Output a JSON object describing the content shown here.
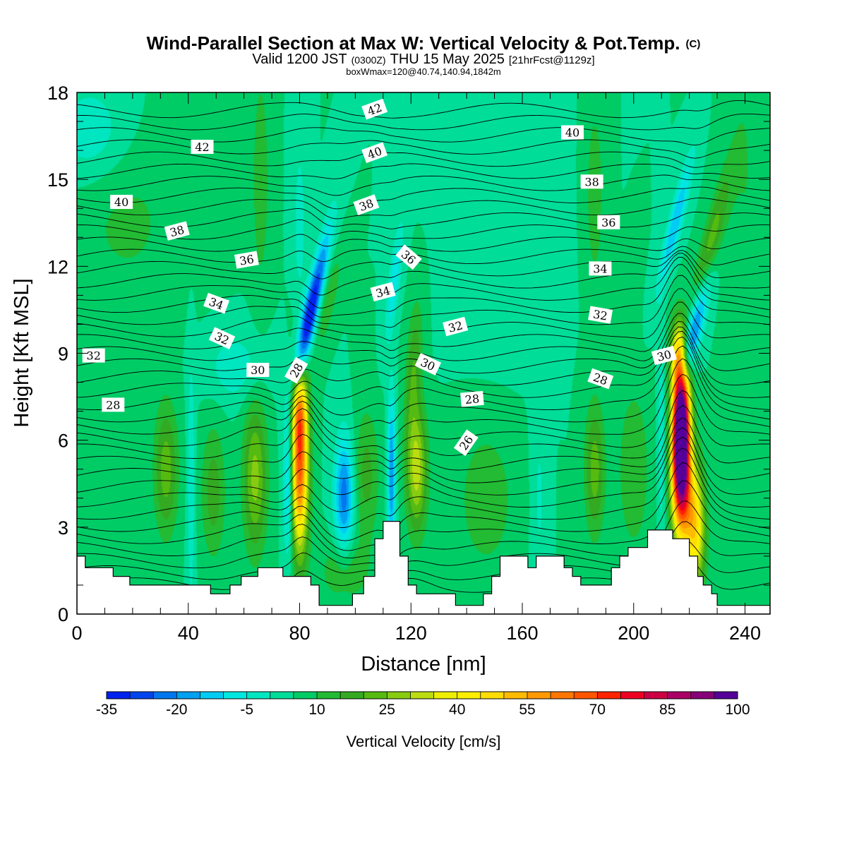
{
  "header": {
    "title_main": "Wind-Parallel Section at Max W: Vertical Velocity & Pot.Temp.",
    "title_mark": "(C)",
    "valid_prefix": "Valid 1200 JST",
    "valid_utc": "(0300Z)",
    "valid_date": "THU 15 May 2025",
    "forecast_info": "[21hrFcst@1129z]",
    "box_info": "boxWmax=120@40.74,140.94,1842m"
  },
  "chart_data": {
    "type": "heatmap",
    "xlabel": "Distance [nm]",
    "ylabel": "Height [Kft MSL]",
    "xlim": [
      0,
      249
    ],
    "ylim": [
      0,
      18
    ],
    "xticks": [
      0,
      40,
      80,
      120,
      160,
      200,
      240
    ],
    "yticks": [
      0,
      3,
      6,
      9,
      12,
      15,
      18
    ],
    "colorbar": {
      "title": "Vertical Velocity [cm/s]",
      "min": -35,
      "max": 100,
      "step": 5,
      "labels": [
        "-35",
        "-20",
        "-5",
        "10",
        "25",
        "40",
        "55",
        "70",
        "85",
        "100"
      ],
      "colors": [
        "#0022ee",
        "#0044ee",
        "#0077ee",
        "#00a0f0",
        "#00ccf4",
        "#00e6e0",
        "#00e6c0",
        "#00dd99",
        "#00cc66",
        "#22bb33",
        "#33aa22",
        "#55bb11",
        "#88cc11",
        "#bbdd11",
        "#eeee00",
        "#ffee00",
        "#ffdd00",
        "#ffbb00",
        "#ff9900",
        "#ff7700",
        "#ff5500",
        "#ff2200",
        "#ee0022",
        "#cc0044",
        "#aa0066",
        "#880077",
        "#550099"
      ]
    },
    "terrain": [
      [
        0,
        2.0
      ],
      [
        3,
        2.0
      ],
      [
        3,
        1.6
      ],
      [
        13,
        1.6
      ],
      [
        13,
        1.3
      ],
      [
        19,
        1.3
      ],
      [
        19,
        1.0
      ],
      [
        48,
        1.0
      ],
      [
        48,
        0.7
      ],
      [
        55,
        0.7
      ],
      [
        55,
        1.0
      ],
      [
        59,
        1.0
      ],
      [
        59,
        1.3
      ],
      [
        65,
        1.3
      ],
      [
        65,
        1.6
      ],
      [
        74,
        1.6
      ],
      [
        74,
        1.3
      ],
      [
        84,
        1.3
      ],
      [
        84,
        1.0
      ],
      [
        87,
        1.0
      ],
      [
        87,
        0.3
      ],
      [
        99,
        0.3
      ],
      [
        99,
        0.7
      ],
      [
        103,
        0.7
      ],
      [
        103,
        1.3
      ],
      [
        107,
        1.3
      ],
      [
        107,
        2.6
      ],
      [
        110,
        2.6
      ],
      [
        110,
        3.2
      ],
      [
        116,
        3.2
      ],
      [
        116,
        2.0
      ],
      [
        119,
        2.0
      ],
      [
        119,
        1.0
      ],
      [
        122,
        1.0
      ],
      [
        122,
        0.7
      ],
      [
        136,
        0.7
      ],
      [
        136,
        0.3
      ],
      [
        146,
        0.3
      ],
      [
        146,
        0.7
      ],
      [
        149,
        0.7
      ],
      [
        149,
        1.3
      ],
      [
        152,
        1.3
      ],
      [
        152,
        2.0
      ],
      [
        162,
        2.0
      ],
      [
        162,
        1.6
      ],
      [
        165,
        1.6
      ],
      [
        165,
        2.0
      ],
      [
        175,
        2.0
      ],
      [
        175,
        1.6
      ],
      [
        178,
        1.6
      ],
      [
        178,
        1.3
      ],
      [
        181,
        1.3
      ],
      [
        181,
        1.0
      ],
      [
        192,
        1.0
      ],
      [
        192,
        1.6
      ],
      [
        195,
        1.6
      ],
      [
        195,
        2.0
      ],
      [
        198,
        2.0
      ],
      [
        198,
        2.3
      ],
      [
        205,
        2.3
      ],
      [
        205,
        2.9
      ],
      [
        214,
        2.9
      ],
      [
        214,
        2.6
      ],
      [
        220,
        2.6
      ],
      [
        220,
        2.0
      ],
      [
        223,
        2.0
      ],
      [
        223,
        1.3
      ],
      [
        225,
        1.3
      ],
      [
        225,
        1.0
      ],
      [
        228,
        1.0
      ],
      [
        228,
        0.7
      ],
      [
        230,
        0.7
      ],
      [
        230,
        0.3
      ],
      [
        249,
        0.3
      ]
    ],
    "features": [
      {
        "x": 80,
        "z": 5.0,
        "sx": 2.2,
        "sz": 2.0,
        "w": 60,
        "tilt": 0
      },
      {
        "x": 80,
        "z": 7.0,
        "sx": 2.0,
        "sz": 1.0,
        "w": 25,
        "tilt": 0
      },
      {
        "x": 76,
        "z": 4.6,
        "sx": 1.3,
        "sz": 1.8,
        "w": -22,
        "tilt": 0
      },
      {
        "x": 83,
        "z": 10.0,
        "sx": 2.0,
        "sz": 1.4,
        "w": -38,
        "tilt": 2.2
      },
      {
        "x": 88,
        "z": 12.2,
        "sx": 2.0,
        "sz": 1.4,
        "w": -14,
        "tilt": 2.2
      },
      {
        "x": 90,
        "z": 10.8,
        "sx": 2.2,
        "sz": 1.2,
        "w": 10,
        "tilt": 2.2
      },
      {
        "x": 96,
        "z": 4.1,
        "sx": 2.4,
        "sz": 1.4,
        "w": -28,
        "tilt": 0
      },
      {
        "x": 104,
        "z": 4.8,
        "sx": 3.2,
        "sz": 1.6,
        "w": 12,
        "tilt": 0
      },
      {
        "x": 113,
        "z": 4.8,
        "sx": 1.0,
        "sz": 2.0,
        "w": -25,
        "tilt": 0
      },
      {
        "x": 114,
        "z": 11.5,
        "sx": 1.5,
        "sz": 1.4,
        "w": -14,
        "tilt": 1.2
      },
      {
        "x": 122,
        "z": 5.0,
        "sx": 2.6,
        "sz": 1.5,
        "w": 28,
        "tilt": 0
      },
      {
        "x": 121,
        "z": 8.5,
        "sx": 2.0,
        "sz": 1.6,
        "w": 14,
        "tilt": 0.5
      },
      {
        "x": 64,
        "z": 4.7,
        "sx": 3.0,
        "sz": 1.8,
        "w": 22,
        "tilt": 0
      },
      {
        "x": 32,
        "z": 5.0,
        "sx": 3.0,
        "sz": 1.6,
        "w": 18,
        "tilt": 0
      },
      {
        "x": 49,
        "z": 4.2,
        "sx": 3.0,
        "sz": 1.6,
        "w": 13,
        "tilt": 0
      },
      {
        "x": 41,
        "z": 4.5,
        "sx": 1.0,
        "sz": 3.0,
        "w": -10,
        "tilt": 0
      },
      {
        "x": 57,
        "z": 8.5,
        "sx": 7.0,
        "sz": 0.8,
        "w": -9,
        "tilt": 0
      },
      {
        "x": 96,
        "z": 1.5,
        "sx": 6.0,
        "sz": 0.8,
        "w": 10,
        "tilt": 0
      },
      {
        "x": 147,
        "z": 4.0,
        "sx": 8.0,
        "sz": 2.0,
        "w": 8,
        "tilt": 0
      },
      {
        "x": 166,
        "z": 4.0,
        "sx": 2.0,
        "sz": 2.5,
        "w": -6,
        "tilt": 0
      },
      {
        "x": 186,
        "z": 5.0,
        "sx": 2.5,
        "sz": 1.6,
        "w": 18,
        "tilt": 0
      },
      {
        "x": 200,
        "z": 5.0,
        "sx": 4.0,
        "sz": 2.0,
        "w": 10,
        "tilt": 0
      },
      {
        "x": 210,
        "z": 6.0,
        "sx": 1.0,
        "sz": 2.5,
        "w": -10,
        "tilt": 0
      },
      {
        "x": 217,
        "z": 6.6,
        "sx": 2.2,
        "sz": 1.5,
        "w": 100,
        "tilt": 0
      },
      {
        "x": 217,
        "z": 4.5,
        "sx": 2.4,
        "sz": 1.5,
        "w": 62,
        "tilt": 0
      },
      {
        "x": 222,
        "z": 3.0,
        "sx": 2.5,
        "sz": 1.5,
        "w": 42,
        "tilt": 0
      },
      {
        "x": 216,
        "z": 8.8,
        "sx": 2.0,
        "sz": 1.0,
        "w": 28,
        "tilt": 0
      },
      {
        "x": 222,
        "z": 10.0,
        "sx": 2.2,
        "sz": 1.5,
        "w": -38,
        "tilt": 2.4
      },
      {
        "x": 215,
        "z": 13.5,
        "sx": 1.8,
        "sz": 1.6,
        "w": -20,
        "tilt": 2.4
      },
      {
        "x": 226,
        "z": 12.0,
        "sx": 2.4,
        "sz": 2.0,
        "w": 24,
        "tilt": 2.4
      },
      {
        "x": 5,
        "z": 16.6,
        "sx": 9.0,
        "sz": 1.2,
        "w": -9,
        "tilt": 0
      },
      {
        "x": 18,
        "z": 13.5,
        "sx": 14.0,
        "sz": 2.0,
        "w": 6,
        "tilt": 0
      },
      {
        "x": 66,
        "z": 15.0,
        "sx": 2.0,
        "sz": 2.5,
        "w": 10,
        "tilt": 0
      },
      {
        "x": 80,
        "z": 13.5,
        "sx": 1.5,
        "sz": 2.0,
        "w": -8,
        "tilt": 0
      },
      {
        "x": 150,
        "z": 13.0,
        "sx": 10.0,
        "sz": 3.0,
        "w": -4,
        "tilt": 0
      },
      {
        "x": 186,
        "z": 14.5,
        "sx": 2.0,
        "sz": 2.0,
        "w": 10,
        "tilt": 0
      },
      {
        "x": 240,
        "z": 15.0,
        "sx": 5.0,
        "sz": 3.0,
        "w": 5,
        "tilt": 0
      }
    ],
    "contour_labels": [
      {
        "text": "42",
        "x": 45,
        "z": 16.1,
        "angle": 0
      },
      {
        "text": "42",
        "x": 107,
        "z": 17.4,
        "angle": -20
      },
      {
        "text": "40",
        "x": 16,
        "z": 14.2,
        "angle": 0
      },
      {
        "text": "40",
        "x": 107,
        "z": 15.9,
        "angle": -20
      },
      {
        "text": "40",
        "x": 178,
        "z": 16.6,
        "angle": 0
      },
      {
        "text": "38",
        "x": 36,
        "z": 13.2,
        "angle": -15
      },
      {
        "text": "38",
        "x": 104,
        "z": 14.1,
        "angle": -20
      },
      {
        "text": "38",
        "x": 185,
        "z": 14.9,
        "angle": 0
      },
      {
        "text": "36",
        "x": 61,
        "z": 12.2,
        "angle": -10
      },
      {
        "text": "36",
        "x": 119,
        "z": 12.3,
        "angle": 40
      },
      {
        "text": "36",
        "x": 191,
        "z": 13.5,
        "angle": 0
      },
      {
        "text": "34",
        "x": 50,
        "z": 10.7,
        "angle": 20
      },
      {
        "text": "34",
        "x": 110,
        "z": 11.1,
        "angle": -15
      },
      {
        "text": "34",
        "x": 188,
        "z": 11.9,
        "angle": 0
      },
      {
        "text": "32",
        "x": 6,
        "z": 8.9,
        "angle": 0
      },
      {
        "text": "32",
        "x": 52,
        "z": 9.5,
        "angle": 25
      },
      {
        "text": "32",
        "x": 136,
        "z": 9.9,
        "angle": -15
      },
      {
        "text": "32",
        "x": 188,
        "z": 10.3,
        "angle": 10
      },
      {
        "text": "30",
        "x": 65,
        "z": 8.4,
        "angle": 0
      },
      {
        "text": "30",
        "x": 211,
        "z": 8.9,
        "angle": -15
      },
      {
        "text": "30",
        "x": 126,
        "z": 8.6,
        "angle": 25
      },
      {
        "text": "28",
        "x": 13,
        "z": 7.2,
        "angle": 0
      },
      {
        "text": "28",
        "x": 79,
        "z": 8.4,
        "angle": -60
      },
      {
        "text": "28",
        "x": 142,
        "z": 7.4,
        "angle": -5
      },
      {
        "text": "28",
        "x": 188,
        "z": 8.1,
        "angle": 20
      },
      {
        "text": "26",
        "x": 140,
        "z": 5.9,
        "angle": -55
      }
    ]
  }
}
